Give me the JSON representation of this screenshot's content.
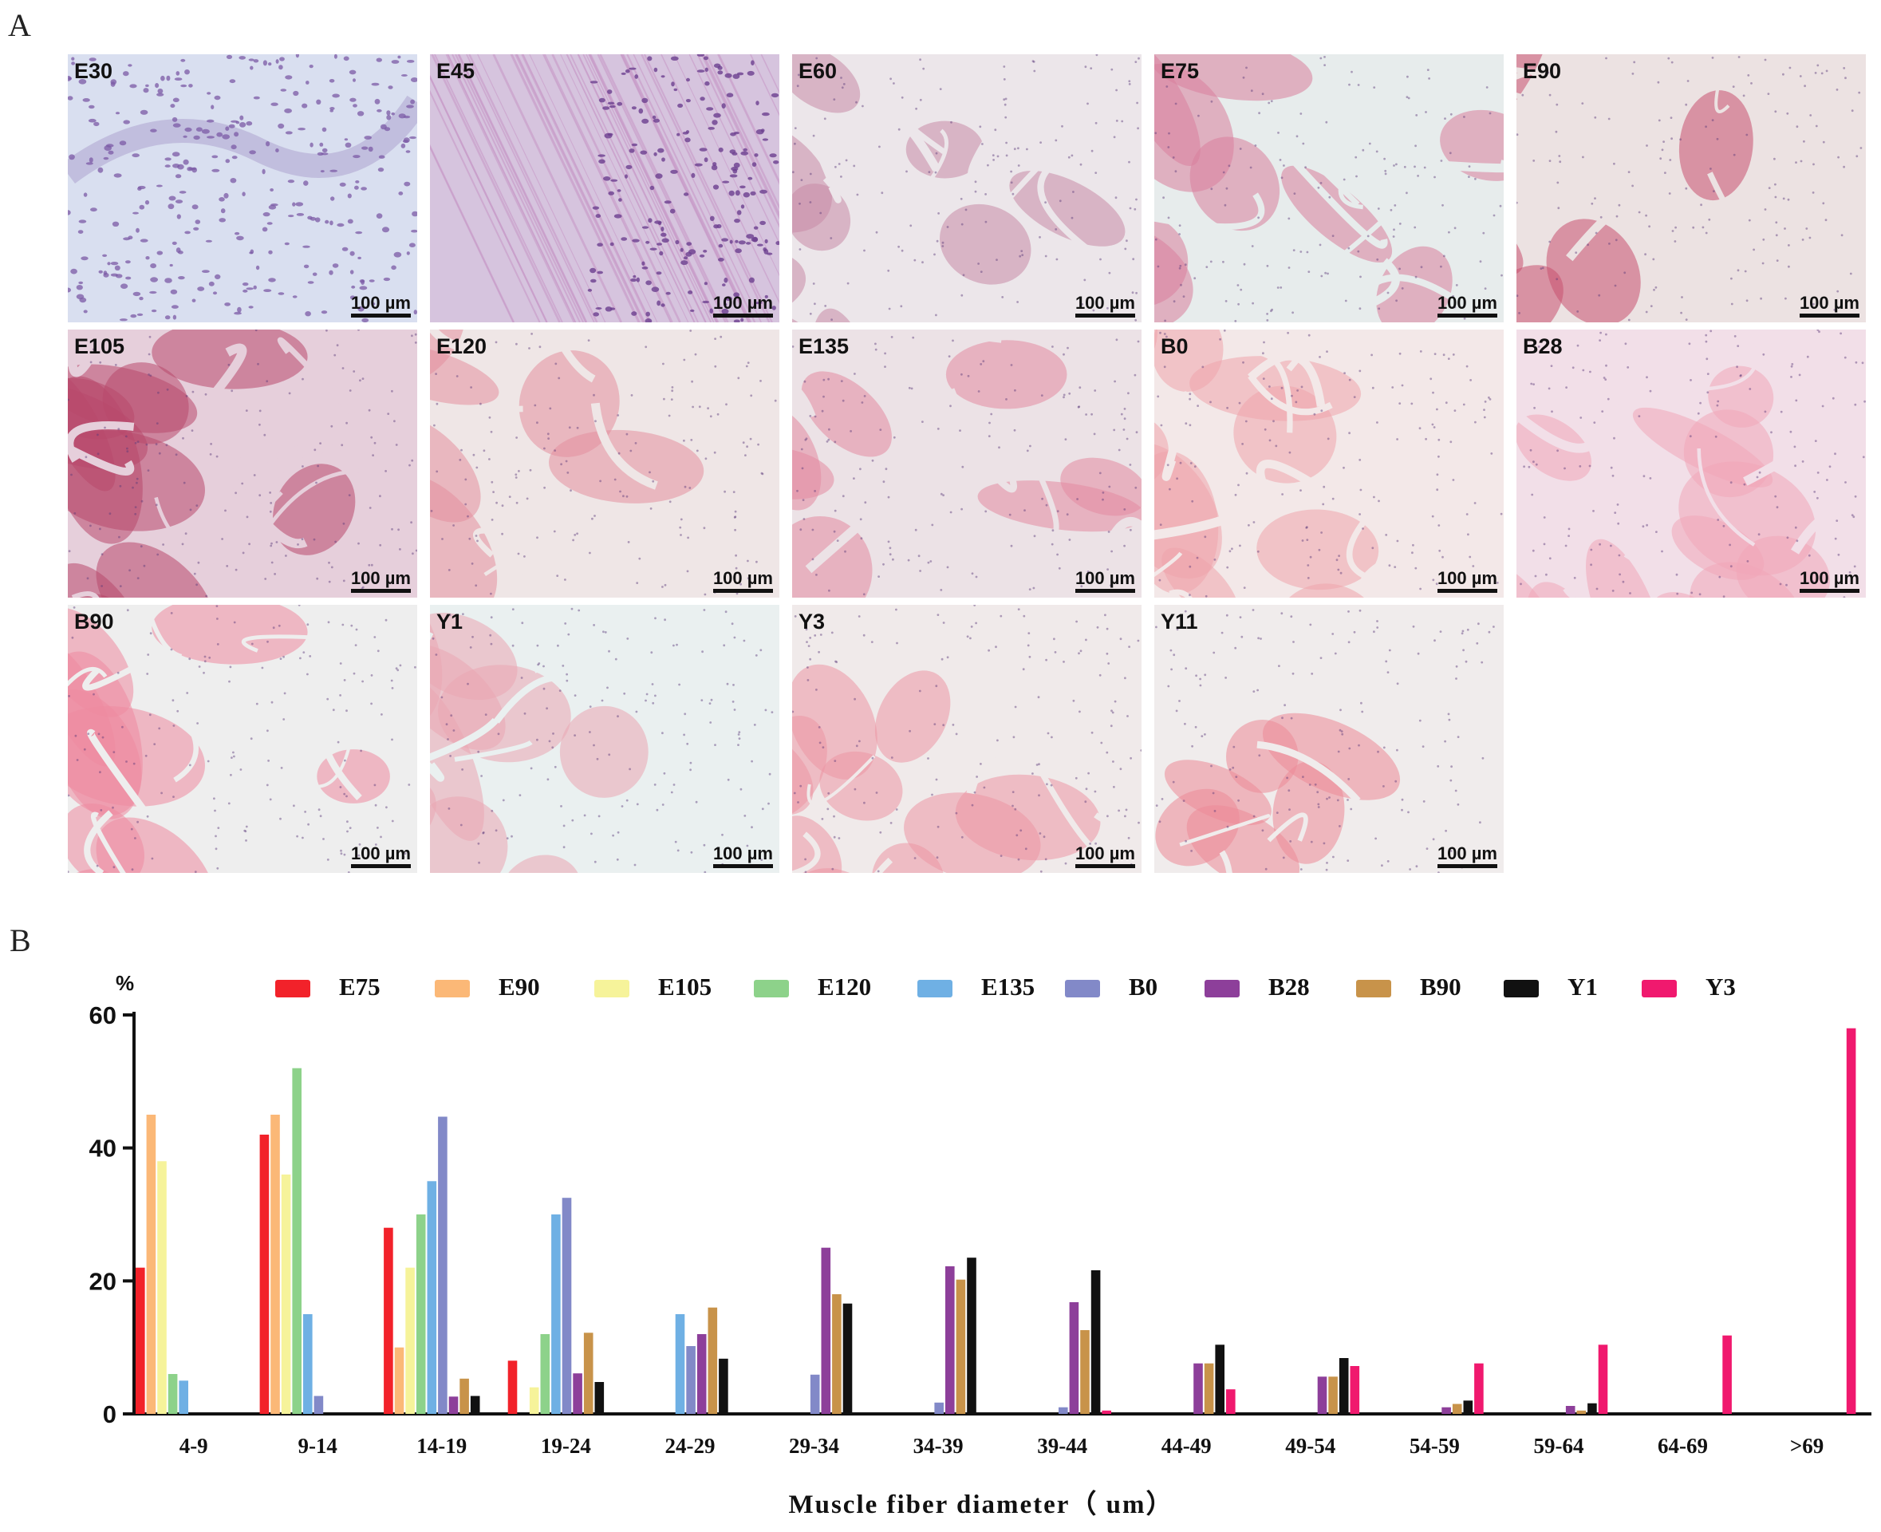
{
  "panel_a": {
    "letter": "A",
    "scale_label": "100 µm",
    "tiles": [
      {
        "label": "E30",
        "base": "#d9dff0",
        "tint": "#7b5aa6",
        "style": "cells"
      },
      {
        "label": "E45",
        "base": "#d6c4de",
        "tint": "#6b3f8e",
        "style": "streaks"
      },
      {
        "label": "E60",
        "base": "#ece6ea",
        "tint": "#c98aa6",
        "style": "bundles"
      },
      {
        "label": "E75",
        "base": "#e7ecec",
        "tint": "#d87f9c",
        "style": "bundles"
      },
      {
        "label": "E90",
        "base": "#ece2e2",
        "tint": "#c8506f",
        "style": "bundles"
      },
      {
        "label": "E105",
        "base": "#e6cfdb",
        "tint": "#b8486c",
        "style": "bundles"
      },
      {
        "label": "E120",
        "base": "#efe6e6",
        "tint": "#e4909e",
        "style": "bundles"
      },
      {
        "label": "E135",
        "base": "#ece2e6",
        "tint": "#e48aa0",
        "style": "bundles"
      },
      {
        "label": "B0",
        "base": "#f3e8e8",
        "tint": "#efa4ac",
        "style": "bundles"
      },
      {
        "label": "B28",
        "base": "#f2dfe8",
        "tint": "#f0a6b8",
        "style": "bundles"
      },
      {
        "label": "B90",
        "base": "#eeeeee",
        "tint": "#ee8aa0",
        "style": "bundles"
      },
      {
        "label": "Y1",
        "base": "#eaf0f0",
        "tint": "#eaa6b2",
        "style": "bundles"
      },
      {
        "label": "Y3",
        "base": "#f0eaea",
        "tint": "#ec96a4",
        "style": "bundles"
      },
      {
        "label": "Y11",
        "base": "#f0ecec",
        "tint": "#ec8a98",
        "style": "bundles"
      }
    ]
  },
  "chart_data": {
    "type": "bar",
    "panel_letter": "B",
    "ylabel": "%",
    "xlabel": "Muscle fiber diameter（ um）",
    "ylim": [
      0,
      60
    ],
    "yticks": [
      0,
      20,
      40,
      60
    ],
    "categories": [
      "4-9",
      "9-14",
      "14-19",
      "19-24",
      "24-29",
      "29-34",
      "34-39",
      "39-44",
      "44-49",
      "49-54",
      "54-59",
      "59-64",
      "64-69",
      ">69"
    ],
    "series": [
      {
        "name": "E75",
        "color": "#f2222a",
        "values": [
          22,
          42,
          28,
          8,
          0,
          0,
          0,
          0,
          0,
          0,
          0,
          0,
          0,
          0
        ]
      },
      {
        "name": "E90",
        "color": "#fbb877",
        "values": [
          45,
          45,
          10,
          0,
          0,
          0,
          0,
          0,
          0,
          0,
          0,
          0,
          0,
          0
        ]
      },
      {
        "name": "E105",
        "color": "#f6f39a",
        "values": [
          38,
          36,
          22,
          4,
          0,
          0,
          0,
          0,
          0,
          0,
          0,
          0,
          0,
          0
        ]
      },
      {
        "name": "E120",
        "color": "#8dd28a",
        "values": [
          6,
          52,
          30,
          12,
          0,
          0,
          0,
          0,
          0,
          0,
          0,
          0,
          0,
          0
        ]
      },
      {
        "name": "E135",
        "color": "#6fb0e4",
        "values": [
          5,
          15,
          35,
          30,
          15,
          0,
          0,
          0,
          0,
          0,
          0,
          0,
          0,
          0
        ]
      },
      {
        "name": "B0",
        "color": "#8289c8",
        "values": [
          0,
          2.7,
          44.7,
          32.5,
          10.2,
          5.9,
          1.7,
          1,
          0,
          0,
          0,
          0,
          0,
          0
        ]
      },
      {
        "name": "B28",
        "color": "#8d3f9a",
        "values": [
          0,
          0,
          2.6,
          6.1,
          12,
          25,
          22.2,
          16.8,
          7.6,
          5.6,
          1,
          1.2,
          0,
          0
        ]
      },
      {
        "name": "B90",
        "color": "#c8934a",
        "values": [
          0,
          0,
          5.3,
          12.2,
          16,
          18,
          20.2,
          12.6,
          7.6,
          5.6,
          1.5,
          0.5,
          0,
          0
        ]
      },
      {
        "name": "Y1",
        "color": "#111111",
        "values": [
          0,
          0,
          2.7,
          4.8,
          8.3,
          16.6,
          23.5,
          21.6,
          10.4,
          8.4,
          2,
          1.6,
          0,
          0
        ]
      },
      {
        "name": "Y3",
        "color": "#f0196e",
        "values": [
          0,
          0,
          0,
          0,
          0,
          0,
          0,
          0.5,
          3.7,
          7.2,
          7.6,
          10.4,
          11.8,
          58
        ]
      }
    ]
  }
}
